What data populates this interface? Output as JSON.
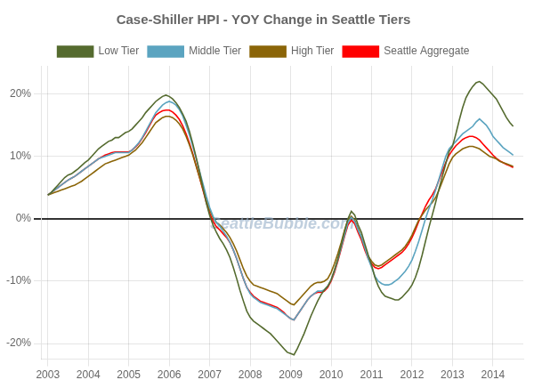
{
  "chart_data": {
    "type": "line",
    "title": "Case-Shiller HPI - YOY Change in Seattle Tiers",
    "x": [
      2003.0,
      2003.083,
      2003.167,
      2003.25,
      2003.333,
      2003.417,
      2003.5,
      2003.583,
      2003.667,
      2003.75,
      2003.833,
      2003.917,
      2004.0,
      2004.083,
      2004.167,
      2004.25,
      2004.333,
      2004.417,
      2004.5,
      2004.583,
      2004.667,
      2004.75,
      2004.833,
      2004.917,
      2005.0,
      2005.083,
      2005.167,
      2005.25,
      2005.333,
      2005.417,
      2005.5,
      2005.583,
      2005.667,
      2005.75,
      2005.833,
      2005.917,
      2006.0,
      2006.083,
      2006.167,
      2006.25,
      2006.333,
      2006.417,
      2006.5,
      2006.583,
      2006.667,
      2006.75,
      2006.833,
      2006.917,
      2007.0,
      2007.083,
      2007.167,
      2007.25,
      2007.333,
      2007.417,
      2007.5,
      2007.583,
      2007.667,
      2007.75,
      2007.833,
      2007.917,
      2008.0,
      2008.083,
      2008.167,
      2008.25,
      2008.333,
      2008.417,
      2008.5,
      2008.583,
      2008.667,
      2008.75,
      2008.833,
      2008.917,
      2009.0,
      2009.083,
      2009.167,
      2009.25,
      2009.333,
      2009.417,
      2009.5,
      2009.583,
      2009.667,
      2009.75,
      2009.833,
      2009.917,
      2010.0,
      2010.083,
      2010.167,
      2010.25,
      2010.333,
      2010.417,
      2010.5,
      2010.583,
      2010.667,
      2010.75,
      2010.833,
      2010.917,
      2011.0,
      2011.083,
      2011.167,
      2011.25,
      2011.333,
      2011.417,
      2011.5,
      2011.583,
      2011.667,
      2011.75,
      2011.833,
      2011.917,
      2012.0,
      2012.083,
      2012.167,
      2012.25,
      2012.333,
      2012.417,
      2012.5,
      2012.583,
      2012.667,
      2012.75,
      2012.833,
      2012.917,
      2013.0,
      2013.083,
      2013.167,
      2013.25,
      2013.333,
      2013.417,
      2013.5,
      2013.583,
      2013.667,
      2013.75,
      2013.833,
      2013.917,
      2014.0,
      2014.083,
      2014.167,
      2014.25,
      2014.333,
      2014.417,
      2014.5
    ],
    "series": [
      {
        "name": "Low Tier",
        "color": "#556B2F",
        "values": [
          0.038,
          0.042,
          0.048,
          0.054,
          0.06,
          0.066,
          0.07,
          0.072,
          0.076,
          0.08,
          0.085,
          0.09,
          0.094,
          0.1,
          0.106,
          0.112,
          0.116,
          0.12,
          0.124,
          0.126,
          0.13,
          0.13,
          0.134,
          0.138,
          0.14,
          0.144,
          0.15,
          0.156,
          0.162,
          0.17,
          0.176,
          0.182,
          0.188,
          0.192,
          0.196,
          0.198,
          0.196,
          0.192,
          0.186,
          0.178,
          0.168,
          0.156,
          0.14,
          0.12,
          0.098,
          0.075,
          0.05,
          0.025,
          0.005,
          -0.01,
          -0.022,
          -0.032,
          -0.04,
          -0.05,
          -0.062,
          -0.078,
          -0.096,
          -0.115,
          -0.132,
          -0.148,
          -0.158,
          -0.164,
          -0.168,
          -0.172,
          -0.176,
          -0.18,
          -0.184,
          -0.19,
          -0.196,
          -0.202,
          -0.208,
          -0.214,
          -0.216,
          -0.218,
          -0.208,
          -0.196,
          -0.184,
          -0.17,
          -0.156,
          -0.144,
          -0.132,
          -0.122,
          -0.114,
          -0.108,
          -0.098,
          -0.082,
          -0.064,
          -0.042,
          -0.02,
          0.0,
          0.012,
          0.006,
          -0.01,
          -0.022,
          -0.04,
          -0.058,
          -0.074,
          -0.094,
          -0.108,
          -0.118,
          -0.124,
          -0.126,
          -0.128,
          -0.13,
          -0.13,
          -0.126,
          -0.12,
          -0.114,
          -0.106,
          -0.094,
          -0.078,
          -0.058,
          -0.036,
          -0.014,
          0.006,
          0.026,
          0.048,
          0.068,
          0.088,
          0.108,
          0.116,
          0.136,
          0.158,
          0.178,
          0.194,
          0.204,
          0.212,
          0.218,
          0.22,
          0.216,
          0.21,
          0.204,
          0.198,
          0.192,
          0.182,
          0.172,
          0.162,
          0.154,
          0.148
        ]
      },
      {
        "name": "Middle Tier",
        "color": "#5BA4C0",
        "values": [
          0.038,
          0.042,
          0.046,
          0.05,
          0.054,
          0.058,
          0.062,
          0.065,
          0.068,
          0.072,
          0.076,
          0.08,
          0.084,
          0.088,
          0.092,
          0.096,
          0.098,
          0.1,
          0.102,
          0.104,
          0.106,
          0.106,
          0.106,
          0.106,
          0.106,
          0.11,
          0.116,
          0.122,
          0.13,
          0.14,
          0.15,
          0.16,
          0.17,
          0.176,
          0.182,
          0.186,
          0.188,
          0.186,
          0.182,
          0.175,
          0.165,
          0.15,
          0.134,
          0.116,
          0.096,
          0.076,
          0.056,
          0.036,
          0.018,
          0.004,
          -0.006,
          -0.012,
          -0.02,
          -0.028,
          -0.038,
          -0.05,
          -0.064,
          -0.08,
          -0.096,
          -0.11,
          -0.12,
          -0.126,
          -0.13,
          -0.134,
          -0.136,
          -0.138,
          -0.14,
          -0.142,
          -0.144,
          -0.148,
          -0.152,
          -0.156,
          -0.16,
          -0.162,
          -0.154,
          -0.146,
          -0.138,
          -0.13,
          -0.124,
          -0.12,
          -0.116,
          -0.116,
          -0.114,
          -0.108,
          -0.098,
          -0.084,
          -0.066,
          -0.046,
          -0.026,
          -0.006,
          0.002,
          -0.004,
          -0.018,
          -0.03,
          -0.046,
          -0.064,
          -0.078,
          -0.092,
          -0.1,
          -0.104,
          -0.106,
          -0.106,
          -0.104,
          -0.1,
          -0.096,
          -0.09,
          -0.084,
          -0.076,
          -0.066,
          -0.052,
          -0.036,
          -0.018,
          0.0,
          0.016,
          0.03,
          0.046,
          0.064,
          0.082,
          0.1,
          0.112,
          0.118,
          0.124,
          0.13,
          0.136,
          0.14,
          0.144,
          0.148,
          0.155,
          0.16,
          0.155,
          0.15,
          0.142,
          0.132,
          0.126,
          0.12,
          0.114,
          0.11,
          0.106,
          0.102
        ]
      },
      {
        "name": "High Tier",
        "color": "#8B6508",
        "values": [
          0.038,
          0.04,
          0.042,
          0.044,
          0.046,
          0.048,
          0.05,
          0.052,
          0.054,
          0.057,
          0.06,
          0.064,
          0.068,
          0.072,
          0.076,
          0.08,
          0.084,
          0.088,
          0.09,
          0.092,
          0.094,
          0.096,
          0.098,
          0.1,
          0.102,
          0.106,
          0.11,
          0.116,
          0.122,
          0.13,
          0.138,
          0.146,
          0.154,
          0.158,
          0.162,
          0.164,
          0.164,
          0.162,
          0.158,
          0.152,
          0.144,
          0.132,
          0.118,
          0.102,
          0.084,
          0.066,
          0.048,
          0.03,
          0.014,
          0.002,
          -0.006,
          -0.01,
          -0.016,
          -0.022,
          -0.03,
          -0.04,
          -0.052,
          -0.066,
          -0.08,
          -0.092,
          -0.1,
          -0.106,
          -0.108,
          -0.11,
          -0.112,
          -0.114,
          -0.116,
          -0.118,
          -0.12,
          -0.124,
          -0.128,
          -0.132,
          -0.136,
          -0.138,
          -0.132,
          -0.126,
          -0.12,
          -0.114,
          -0.108,
          -0.104,
          -0.102,
          -0.102,
          -0.1,
          -0.096,
          -0.086,
          -0.072,
          -0.056,
          -0.038,
          -0.018,
          -0.002,
          0.004,
          -0.002,
          -0.016,
          -0.03,
          -0.046,
          -0.06,
          -0.068,
          -0.074,
          -0.076,
          -0.074,
          -0.07,
          -0.066,
          -0.062,
          -0.058,
          -0.054,
          -0.05,
          -0.044,
          -0.036,
          -0.026,
          -0.014,
          -0.002,
          0.006,
          0.014,
          0.02,
          0.026,
          0.034,
          0.046,
          0.06,
          0.074,
          0.088,
          0.098,
          0.104,
          0.108,
          0.112,
          0.114,
          0.116,
          0.116,
          0.114,
          0.112,
          0.108,
          0.104,
          0.1,
          0.098,
          0.096,
          0.092,
          0.09,
          0.088,
          0.086,
          0.084
        ]
      },
      {
        "name": "Seattle Aggregate",
        "color": "#FF0000",
        "values": [
          0.038,
          0.042,
          0.046,
          0.05,
          0.054,
          0.058,
          0.062,
          0.065,
          0.068,
          0.072,
          0.076,
          0.08,
          0.084,
          0.088,
          0.092,
          0.096,
          0.099,
          0.102,
          0.104,
          0.106,
          0.107,
          0.107,
          0.107,
          0.107,
          0.107,
          0.11,
          0.115,
          0.121,
          0.129,
          0.138,
          0.148,
          0.158,
          0.166,
          0.17,
          0.173,
          0.174,
          0.174,
          0.171,
          0.166,
          0.159,
          0.149,
          0.136,
          0.121,
          0.104,
          0.085,
          0.066,
          0.046,
          0.026,
          0.009,
          -0.004,
          -0.013,
          -0.018,
          -0.024,
          -0.03,
          -0.038,
          -0.05,
          -0.064,
          -0.08,
          -0.096,
          -0.11,
          -0.118,
          -0.124,
          -0.128,
          -0.132,
          -0.134,
          -0.136,
          -0.138,
          -0.14,
          -0.142,
          -0.146,
          -0.15,
          -0.156,
          -0.16,
          -0.162,
          -0.154,
          -0.146,
          -0.138,
          -0.13,
          -0.124,
          -0.12,
          -0.118,
          -0.118,
          -0.116,
          -0.11,
          -0.1,
          -0.086,
          -0.068,
          -0.048,
          -0.028,
          -0.01,
          -0.002,
          -0.008,
          -0.022,
          -0.034,
          -0.05,
          -0.064,
          -0.072,
          -0.078,
          -0.08,
          -0.078,
          -0.074,
          -0.07,
          -0.066,
          -0.062,
          -0.058,
          -0.054,
          -0.048,
          -0.04,
          -0.03,
          -0.018,
          -0.004,
          0.008,
          0.02,
          0.03,
          0.038,
          0.048,
          0.062,
          0.076,
          0.09,
          0.102,
          0.11,
          0.117,
          0.122,
          0.127,
          0.13,
          0.132,
          0.132,
          0.13,
          0.126,
          0.12,
          0.114,
          0.108,
          0.102,
          0.097,
          0.093,
          0.09,
          0.087,
          0.085,
          0.082
        ]
      }
    ],
    "xlim": [
      2002.83,
      2014.75
    ],
    "xticks": [
      2003,
      2004,
      2005,
      2006,
      2007,
      2008,
      2009,
      2010,
      2011,
      2012,
      2013,
      2014
    ],
    "ylim": [
      -0.225,
      0.245
    ],
    "yticks": [
      {
        "value": -0.2,
        "label": "-20%"
      },
      {
        "value": -0.1,
        "label": "-10%"
      },
      {
        "value": 0.0,
        "label": "0%"
      },
      {
        "value": 0.1,
        "label": "10%"
      },
      {
        "value": 0.2,
        "label": "20%"
      }
    ],
    "grid": true,
    "legend": "top",
    "annotations": [
      "SeattleBubble.com"
    ]
  }
}
